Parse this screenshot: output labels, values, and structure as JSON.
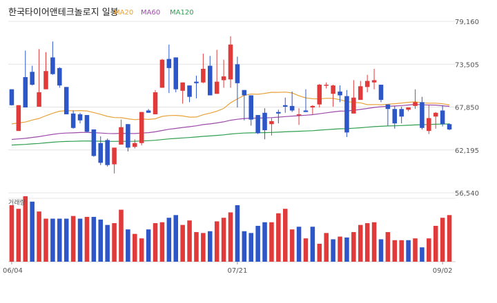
{
  "chart_title": "한국타이어앤테크놀로지 일봉",
  "legend": [
    {
      "label": "MA20",
      "color": "#e8a23a"
    },
    {
      "label": "MA60",
      "color": "#9b4aa8"
    },
    {
      "label": "MA120",
      "color": "#2e9e4f"
    }
  ],
  "chart_data": {
    "type": "candlestick",
    "title": "한국타이어앤테크놀로지 일봉",
    "y_ticks": [
      "79,160",
      "73,505",
      "67,850",
      "62,195",
      "56,540"
    ],
    "y_tick_values": [
      79160,
      73505,
      67850,
      62195,
      56540
    ],
    "ylim": [
      56540,
      79160
    ],
    "x_ticks": [
      {
        "label": "06/04",
        "index": 0
      },
      {
        "label": "07/21",
        "index": 33
      },
      {
        "label": "09/02",
        "index": 63
      }
    ],
    "volume_label": "거래량",
    "up_color": "#e03a3a",
    "down_color": "#2d56c8",
    "candles": [
      [
        70200,
        68100,
        70200,
        68050
      ],
      [
        64700,
        68100,
        68100,
        64700
      ],
      [
        71800,
        67800,
        75300,
        67800
      ],
      [
        72500,
        70800,
        73300,
        70700
      ],
      [
        67900,
        69800,
        75500,
        67900
      ],
      [
        70200,
        72600,
        75100,
        70200
      ],
      [
        74400,
        72200,
        76500,
        72100
      ],
      [
        73000,
        70700,
        73100,
        70400
      ],
      [
        70500,
        66900,
        70500,
        66900
      ],
      [
        67000,
        65100,
        67400,
        65000
      ],
      [
        66900,
        66100,
        67100,
        65700
      ],
      [
        66800,
        64600,
        66800,
        64500
      ],
      [
        64900,
        61400,
        64900,
        61300
      ],
      [
        63100,
        60500,
        64000,
        60200
      ],
      [
        63500,
        60200,
        63700,
        60000
      ],
      [
        60300,
        62500,
        62500,
        59100
      ],
      [
        62900,
        65200,
        66200,
        62900
      ],
      [
        65600,
        62500,
        65600,
        62000
      ],
      [
        62600,
        63100,
        63600,
        62400
      ],
      [
        63100,
        67200,
        67200,
        62800
      ],
      [
        67400,
        67100,
        67600,
        67100
      ],
      [
        66900,
        69800,
        70100,
        66900
      ],
      [
        70400,
        74100,
        74200,
        70400
      ],
      [
        74200,
        73000,
        76100,
        69700
      ],
      [
        74400,
        70200,
        74400,
        69800
      ],
      [
        70000,
        71100,
        71100,
        68300
      ],
      [
        70700,
        69200,
        70700,
        68500
      ],
      [
        71200,
        71000,
        72000,
        69000
      ],
      [
        71100,
        72900,
        74900,
        71000
      ],
      [
        73300,
        69400,
        74600,
        69400
      ],
      [
        69600,
        71200,
        75400,
        69600
      ],
      [
        71400,
        71900,
        74100,
        70400
      ],
      [
        71500,
        76100,
        77200,
        70400
      ],
      [
        73500,
        71000,
        74500,
        67800
      ],
      [
        70100,
        69400,
        70100,
        66100
      ],
      [
        69400,
        66200,
        69400,
        65400
      ],
      [
        66800,
        64400,
        66800,
        64300
      ],
      [
        67100,
        64800,
        67700,
        63600
      ],
      [
        65600,
        66000,
        66400,
        64100
      ],
      [
        67200,
        67000,
        67500,
        65700
      ],
      [
        68100,
        67900,
        69100,
        67100
      ],
      [
        68000,
        67400,
        69900,
        67200
      ],
      [
        66900,
        66900,
        67700,
        65500
      ],
      [
        67400,
        67200,
        70200,
        67200
      ],
      [
        67800,
        68000,
        68100,
        66900
      ],
      [
        68200,
        70800,
        70900,
        67800
      ],
      [
        70700,
        70800,
        71100,
        70300
      ],
      [
        69600,
        70700,
        70800,
        67900
      ],
      [
        69900,
        69400,
        70700,
        68500
      ],
      [
        69300,
        64500,
        70100,
        63900
      ],
      [
        67000,
        69100,
        71400,
        67000
      ],
      [
        68800,
        70600,
        71300,
        68800
      ],
      [
        70500,
        71300,
        72100,
        69800
      ],
      [
        71100,
        71400,
        72900,
        70200
      ],
      [
        70800,
        68800,
        70800,
        68500
      ],
      [
        68200,
        67600,
        68200,
        65400
      ],
      [
        67600,
        65700,
        68000,
        65000
      ],
      [
        67600,
        66600,
        67900,
        65700
      ],
      [
        67500,
        67800,
        67500,
        67300
      ],
      [
        68000,
        68500,
        70200,
        67600
      ],
      [
        68500,
        65100,
        69200,
        64900
      ],
      [
        64700,
        66400,
        68100,
        64300
      ],
      [
        66600,
        67100,
        67200,
        65000
      ],
      [
        67400,
        65600,
        68100,
        65300
      ],
      [
        65600,
        64900,
        65700,
        64800
      ]
    ],
    "volume_up": [
      true,
      true,
      true,
      false,
      true,
      true,
      false,
      false,
      false,
      true,
      false,
      true,
      false,
      false,
      false,
      true,
      true,
      false,
      true,
      true,
      false,
      true,
      true,
      false,
      false,
      true,
      true,
      true,
      true,
      false,
      true,
      true,
      true,
      false,
      false,
      false,
      false,
      false,
      true,
      true,
      true,
      true,
      false,
      true,
      false,
      true,
      true,
      false,
      true,
      false,
      true,
      true,
      true,
      true,
      false,
      true,
      true,
      true,
      false,
      true,
      false,
      true,
      true,
      true,
      true
    ],
    "volumes": [
      0.63,
      0.59,
      0.73,
      0.67,
      0.56,
      0.48,
      0.48,
      0.48,
      0.48,
      0.51,
      0.48,
      0.5,
      0.5,
      0.47,
      0.41,
      0.43,
      0.58,
      0.36,
      0.31,
      0.26,
      0.36,
      0.43,
      0.44,
      0.49,
      0.52,
      0.41,
      0.46,
      0.33,
      0.32,
      0.34,
      0.45,
      0.49,
      0.55,
      0.63,
      0.34,
      0.32,
      0.4,
      0.44,
      0.44,
      0.54,
      0.59,
      0.36,
      0.39,
      0.26,
      0.39,
      0.2,
      0.32,
      0.25,
      0.28,
      0.27,
      0.33,
      0.41,
      0.43,
      0.44,
      0.25,
      0.33,
      0.24,
      0.24,
      0.24,
      0.26,
      0.16,
      0.26,
      0.4,
      0.49,
      0.52
    ]
  }
}
